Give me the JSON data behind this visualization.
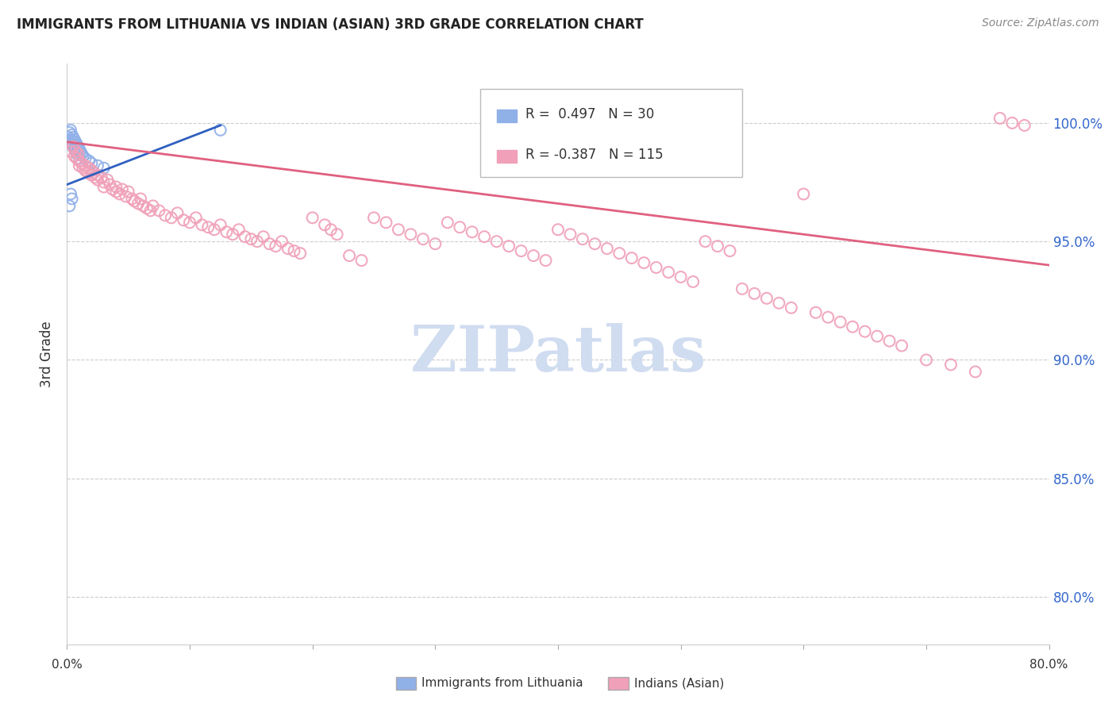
{
  "title": "IMMIGRANTS FROM LITHUANIA VS INDIAN (ASIAN) 3RD GRADE CORRELATION CHART",
  "source_text": "Source: ZipAtlas.com",
  "ylabel": "3rd Grade",
  "y_tick_labels": [
    "100.0%",
    "95.0%",
    "90.0%",
    "85.0%",
    "80.0%"
  ],
  "y_tick_values": [
    1.0,
    0.95,
    0.9,
    0.85,
    0.8
  ],
  "x_lim": [
    0.0,
    0.8
  ],
  "y_lim": [
    0.78,
    1.025
  ],
  "blue_color": "#90B0E8",
  "pink_color": "#F0A0B8",
  "blue_line_color": "#3060C0",
  "pink_line_color": "#E06080",
  "watermark_color": "#D0DCF0",
  "blue_line": [
    [
      0.0,
      0.974
    ],
    [
      0.125,
      0.999
    ]
  ],
  "pink_line": [
    [
      0.0,
      0.992
    ],
    [
      0.8,
      0.94
    ]
  ],
  "blue_scatter": [
    [
      0.001,
      0.994
    ],
    [
      0.002,
      0.996
    ],
    [
      0.002,
      0.992
    ],
    [
      0.003,
      0.997
    ],
    [
      0.003,
      0.993
    ],
    [
      0.004,
      0.995
    ],
    [
      0.004,
      0.991
    ],
    [
      0.005,
      0.994
    ],
    [
      0.005,
      0.99
    ],
    [
      0.006,
      0.993
    ],
    [
      0.006,
      0.989
    ],
    [
      0.007,
      0.992
    ],
    [
      0.007,
      0.988
    ],
    [
      0.008,
      0.991
    ],
    [
      0.008,
      0.987
    ],
    [
      0.009,
      0.99
    ],
    [
      0.01,
      0.989
    ],
    [
      0.01,
      0.985
    ],
    [
      0.011,
      0.988
    ],
    [
      0.012,
      0.987
    ],
    [
      0.013,
      0.986
    ],
    [
      0.015,
      0.985
    ],
    [
      0.018,
      0.984
    ],
    [
      0.02,
      0.983
    ],
    [
      0.025,
      0.982
    ],
    [
      0.03,
      0.981
    ],
    [
      0.003,
      0.97
    ],
    [
      0.004,
      0.968
    ],
    [
      0.125,
      0.997
    ],
    [
      0.002,
      0.965
    ]
  ],
  "pink_scatter": [
    [
      0.003,
      0.988
    ],
    [
      0.005,
      0.99
    ],
    [
      0.006,
      0.986
    ],
    [
      0.007,
      0.988
    ],
    [
      0.008,
      0.985
    ],
    [
      0.009,
      0.987
    ],
    [
      0.01,
      0.984
    ],
    [
      0.01,
      0.982
    ],
    [
      0.012,
      0.983
    ],
    [
      0.013,
      0.981
    ],
    [
      0.015,
      0.982
    ],
    [
      0.015,
      0.98
    ],
    [
      0.017,
      0.979
    ],
    [
      0.018,
      0.981
    ],
    [
      0.02,
      0.98
    ],
    [
      0.02,
      0.978
    ],
    [
      0.022,
      0.979
    ],
    [
      0.023,
      0.977
    ],
    [
      0.025,
      0.978
    ],
    [
      0.025,
      0.976
    ],
    [
      0.028,
      0.977
    ],
    [
      0.03,
      0.975
    ],
    [
      0.03,
      0.973
    ],
    [
      0.033,
      0.976
    ],
    [
      0.035,
      0.974
    ],
    [
      0.037,
      0.972
    ],
    [
      0.04,
      0.973
    ],
    [
      0.04,
      0.971
    ],
    [
      0.043,
      0.97
    ],
    [
      0.045,
      0.972
    ],
    [
      0.048,
      0.969
    ],
    [
      0.05,
      0.971
    ],
    [
      0.053,
      0.968
    ],
    [
      0.055,
      0.967
    ],
    [
      0.058,
      0.966
    ],
    [
      0.06,
      0.968
    ],
    [
      0.062,
      0.965
    ],
    [
      0.065,
      0.964
    ],
    [
      0.068,
      0.963
    ],
    [
      0.07,
      0.965
    ],
    [
      0.075,
      0.963
    ],
    [
      0.08,
      0.961
    ],
    [
      0.085,
      0.96
    ],
    [
      0.09,
      0.962
    ],
    [
      0.095,
      0.959
    ],
    [
      0.1,
      0.958
    ],
    [
      0.105,
      0.96
    ],
    [
      0.11,
      0.957
    ],
    [
      0.115,
      0.956
    ],
    [
      0.12,
      0.955
    ],
    [
      0.125,
      0.957
    ],
    [
      0.13,
      0.954
    ],
    [
      0.135,
      0.953
    ],
    [
      0.14,
      0.955
    ],
    [
      0.145,
      0.952
    ],
    [
      0.15,
      0.951
    ],
    [
      0.155,
      0.95
    ],
    [
      0.16,
      0.952
    ],
    [
      0.165,
      0.949
    ],
    [
      0.17,
      0.948
    ],
    [
      0.175,
      0.95
    ],
    [
      0.18,
      0.947
    ],
    [
      0.185,
      0.946
    ],
    [
      0.19,
      0.945
    ],
    [
      0.2,
      0.96
    ],
    [
      0.21,
      0.957
    ],
    [
      0.215,
      0.955
    ],
    [
      0.22,
      0.953
    ],
    [
      0.23,
      0.944
    ],
    [
      0.24,
      0.942
    ],
    [
      0.25,
      0.96
    ],
    [
      0.26,
      0.958
    ],
    [
      0.27,
      0.955
    ],
    [
      0.28,
      0.953
    ],
    [
      0.29,
      0.951
    ],
    [
      0.3,
      0.949
    ],
    [
      0.31,
      0.958
    ],
    [
      0.32,
      0.956
    ],
    [
      0.33,
      0.954
    ],
    [
      0.34,
      0.952
    ],
    [
      0.35,
      0.95
    ],
    [
      0.36,
      0.948
    ],
    [
      0.37,
      0.946
    ],
    [
      0.38,
      0.944
    ],
    [
      0.39,
      0.942
    ],
    [
      0.4,
      0.955
    ],
    [
      0.41,
      0.953
    ],
    [
      0.42,
      0.951
    ],
    [
      0.43,
      0.949
    ],
    [
      0.44,
      0.947
    ],
    [
      0.45,
      0.945
    ],
    [
      0.46,
      0.943
    ],
    [
      0.47,
      0.941
    ],
    [
      0.48,
      0.939
    ],
    [
      0.49,
      0.937
    ],
    [
      0.5,
      0.935
    ],
    [
      0.51,
      0.933
    ],
    [
      0.52,
      0.95
    ],
    [
      0.53,
      0.948
    ],
    [
      0.54,
      0.946
    ],
    [
      0.55,
      0.93
    ],
    [
      0.56,
      0.928
    ],
    [
      0.57,
      0.926
    ],
    [
      0.58,
      0.924
    ],
    [
      0.59,
      0.922
    ],
    [
      0.6,
      0.97
    ],
    [
      0.61,
      0.92
    ],
    [
      0.62,
      0.918
    ],
    [
      0.63,
      0.916
    ],
    [
      0.64,
      0.914
    ],
    [
      0.65,
      0.912
    ],
    [
      0.66,
      0.91
    ],
    [
      0.67,
      0.908
    ],
    [
      0.68,
      0.906
    ],
    [
      0.7,
      0.9
    ],
    [
      0.72,
      0.898
    ],
    [
      0.74,
      0.895
    ],
    [
      0.76,
      1.002
    ],
    [
      0.77,
      1.0
    ],
    [
      0.78,
      0.999
    ]
  ]
}
